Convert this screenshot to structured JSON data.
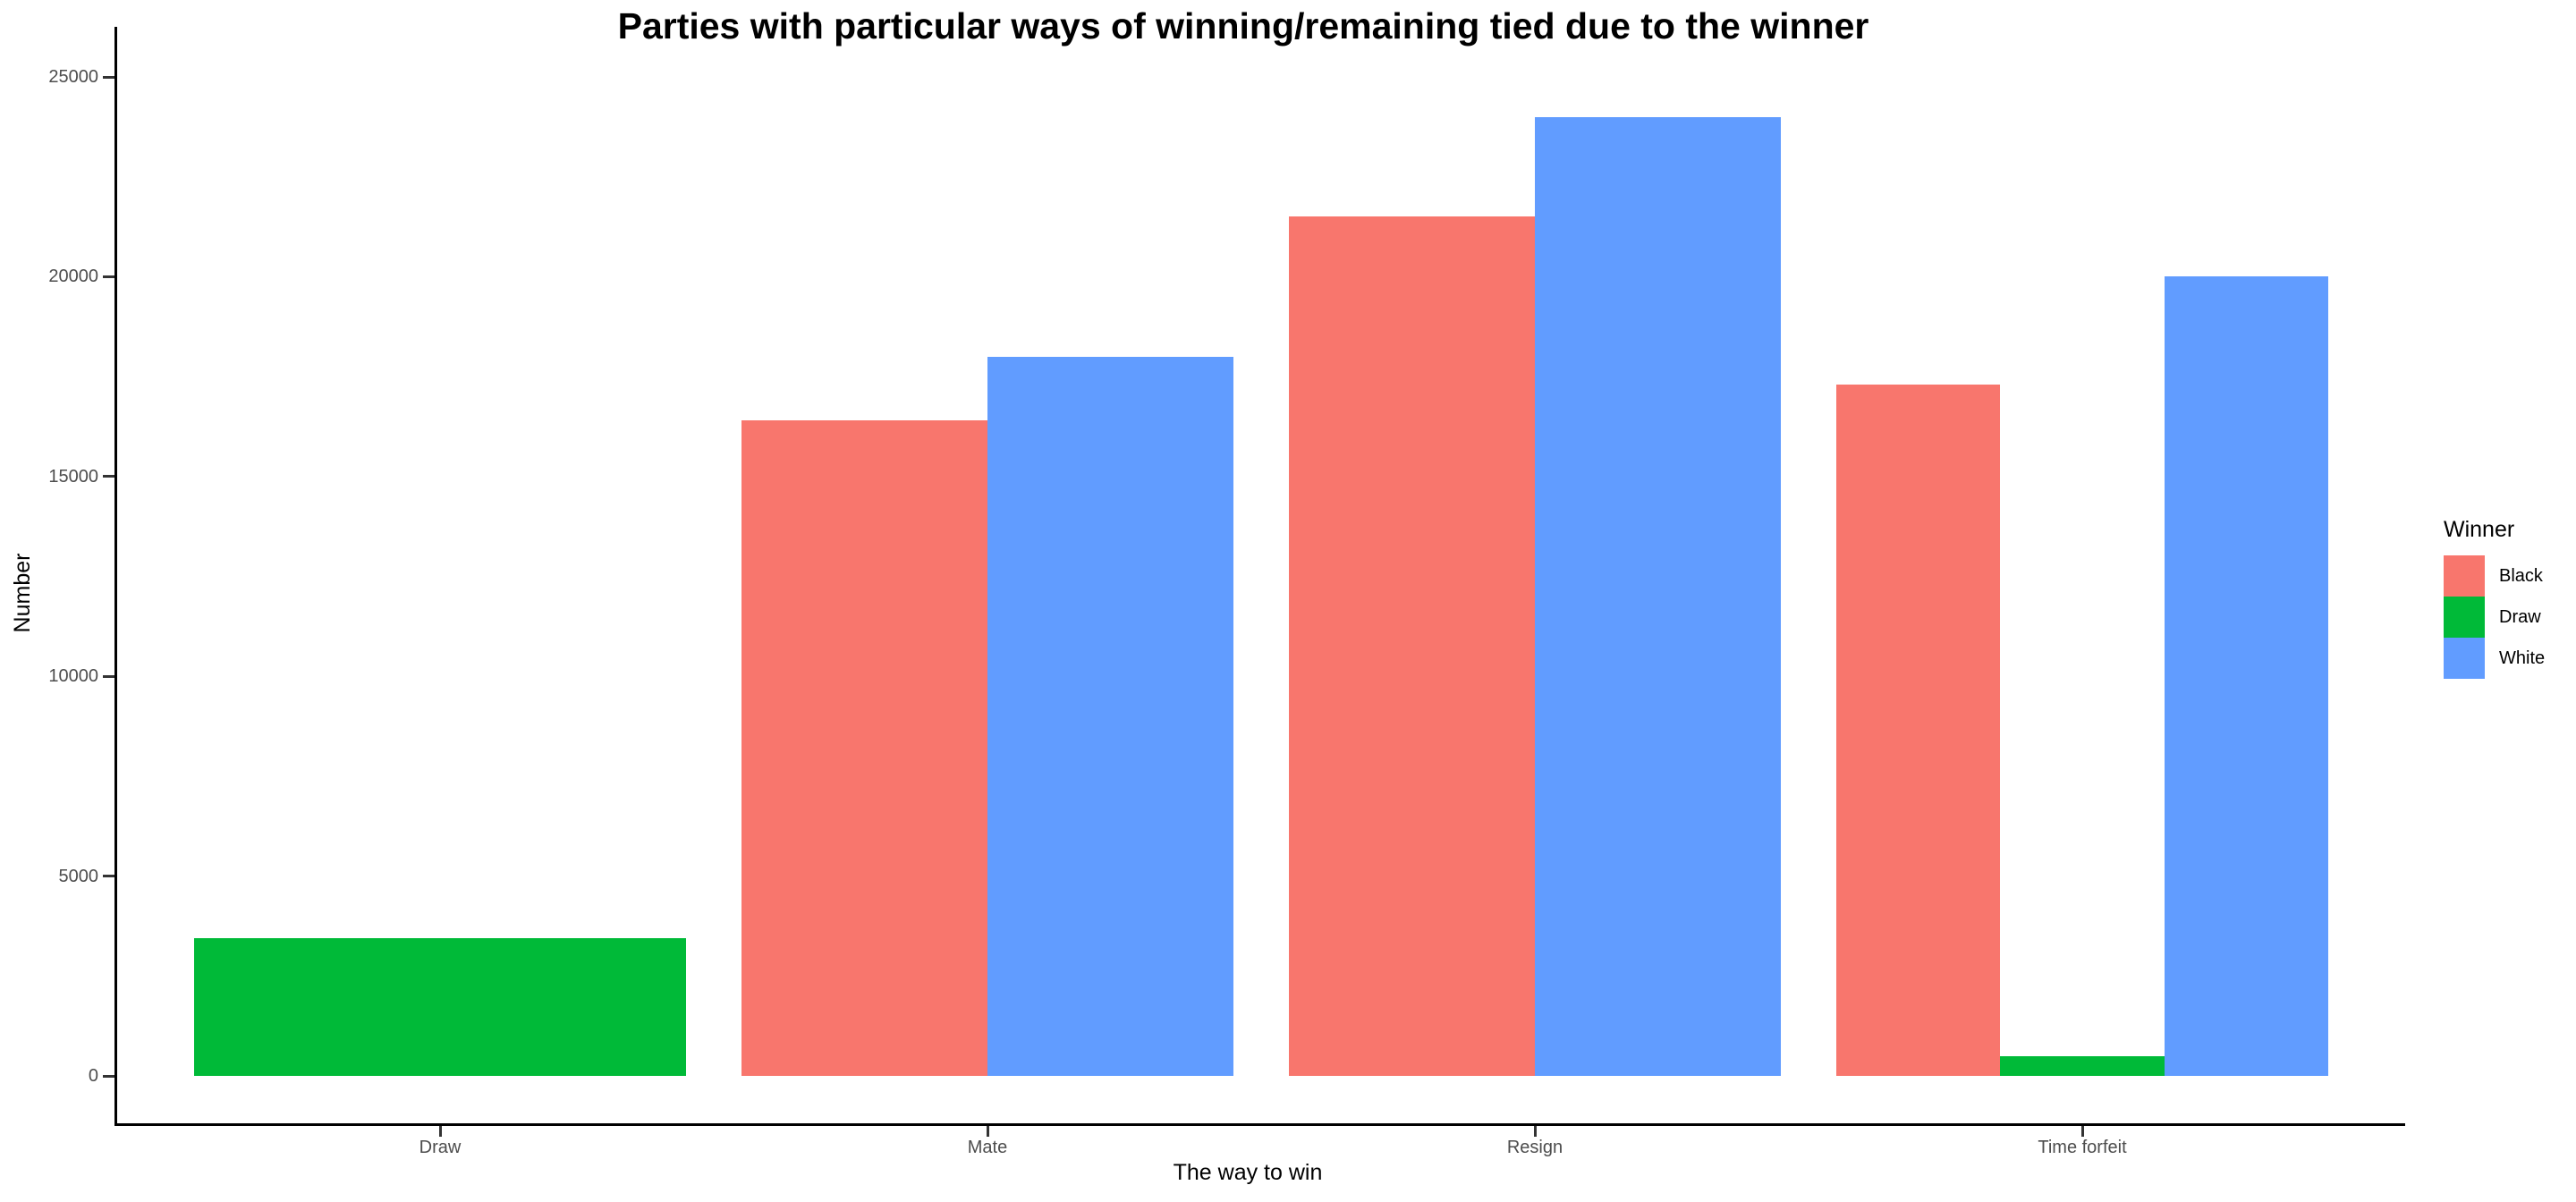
{
  "chart_data": {
    "type": "bar",
    "grouping": "dodge",
    "title": "Parties with particular ways of winning/remaining tied due to the winner",
    "xlabel": "The way to win",
    "ylabel": "Number",
    "categories": [
      "Draw",
      "Mate",
      "Resign",
      "Time forfeit"
    ],
    "series": [
      {
        "name": "Black",
        "color": "#F8766D",
        "values": [
          null,
          16400,
          21500,
          17300
        ]
      },
      {
        "name": "Draw",
        "color": "#00BA38",
        "values": [
          3450,
          null,
          null,
          500
        ]
      },
      {
        "name": "White",
        "color": "#619CFF",
        "values": [
          null,
          18000,
          24000,
          20000
        ]
      }
    ],
    "ylim": [
      0,
      25000
    ],
    "yticks": [
      0,
      5000,
      10000,
      15000,
      20000,
      25000
    ],
    "grid": false,
    "axis_theme": "classic",
    "legend": {
      "title": "Winner",
      "position": "right"
    }
  }
}
